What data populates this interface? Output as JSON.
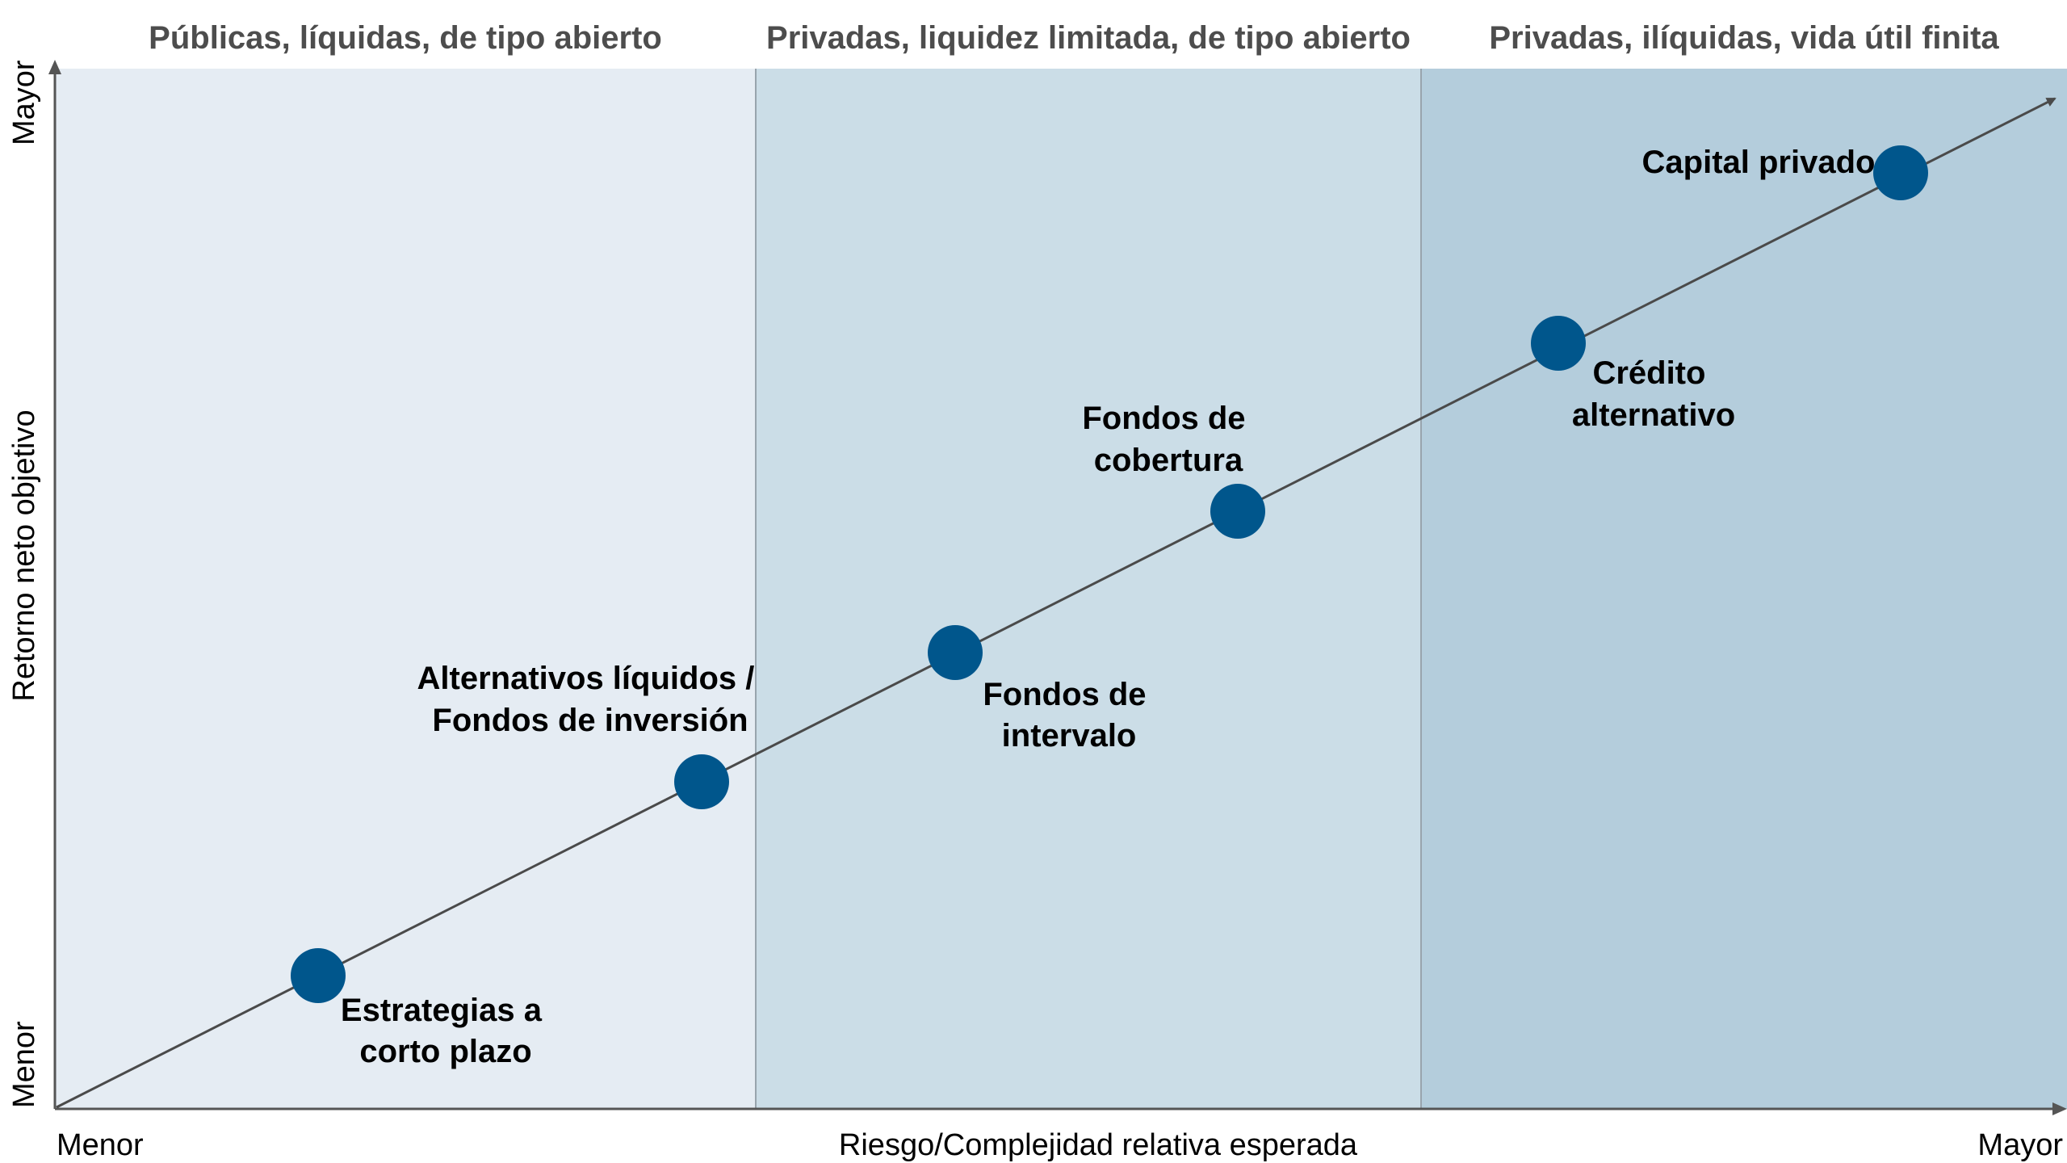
{
  "colors": {
    "band_1": "#e5ecf3",
    "band_2": "#cbdde7",
    "band_3": "#b4cddc",
    "divider": "#98a4ad",
    "axis": "#555555",
    "trend_line": "#4a4a4a",
    "marker": "#00568c"
  },
  "regions": [
    {
      "title": "Públicas, líquidas, de tipo abierto"
    },
    {
      "title": "Privadas, liquidez limitada, de tipo abierto"
    },
    {
      "title": "Privadas, ilíquidas, vida útil finita"
    }
  ],
  "axes": {
    "x_label": "Riesgo/Complejidad relativa esperada",
    "x_min_label": "Menor",
    "x_max_label": "Mayor",
    "y_label": "Retorno neto objetivo",
    "y_min_label": "Menor",
    "y_max_label": "Mayor"
  },
  "points": [
    {
      "lines": [
        "Estrategias a",
        "corto plazo"
      ]
    },
    {
      "lines": [
        "Alternativos líquidos /",
        "Fondos de inversión"
      ]
    },
    {
      "lines": [
        "Fondos de",
        "intervalo"
      ]
    },
    {
      "lines": [
        "Fondos de",
        "cobertura"
      ]
    },
    {
      "lines": [
        "Crédito",
        "alternativo"
      ]
    },
    {
      "lines": [
        "Capital privado"
      ]
    }
  ]
}
